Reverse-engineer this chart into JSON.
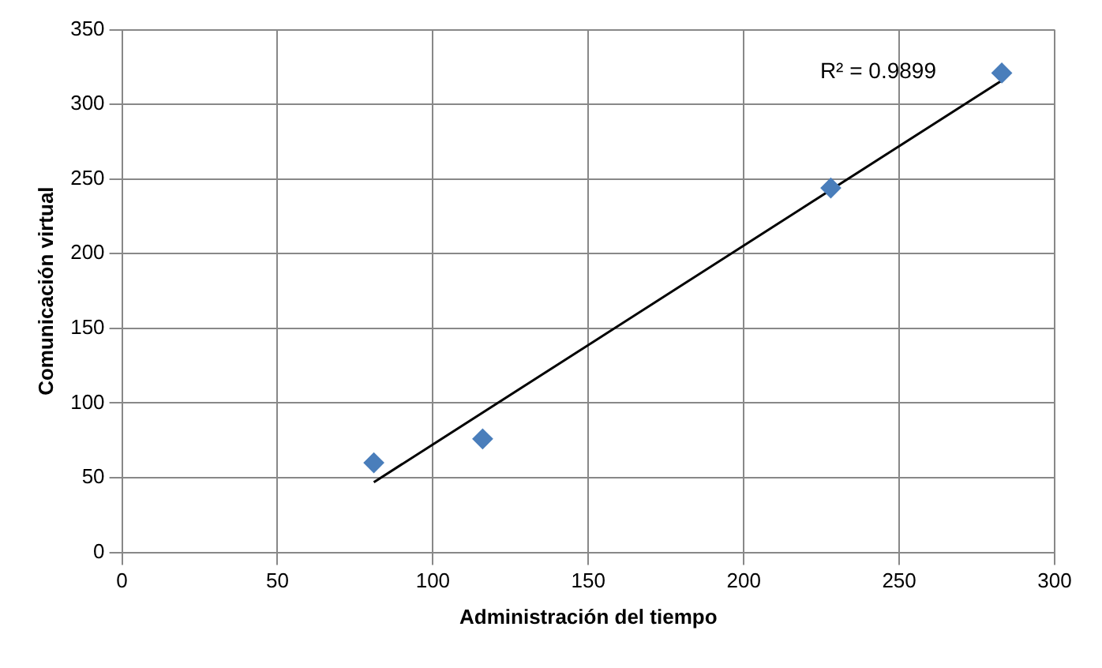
{
  "chart_data": {
    "type": "scatter",
    "xlabel": "Administración del tiempo",
    "ylabel": "Comunicación virtual",
    "series": [
      {
        "color": "#4a7ebb",
        "x": [
          81,
          116,
          228,
          283
        ],
        "values": [
          60,
          76,
          244,
          321
        ],
        "marker": "diamond"
      },
      {
        "type": "line",
        "color": "#000000",
        "x": [
          81,
          283
        ],
        "values": [
          47,
          316
        ],
        "marker": "none",
        "line_style": "solid"
      }
    ],
    "annotations": [
      "R² = 0.9899"
    ],
    "xlim": [
      0,
      300
    ],
    "xticks": [
      0,
      50,
      100,
      150,
      200,
      250,
      300
    ],
    "ylim": [
      0,
      350
    ],
    "yticks": [
      0,
      50,
      100,
      150,
      200,
      250,
      300,
      350
    ],
    "grid": true,
    "legend": false
  }
}
